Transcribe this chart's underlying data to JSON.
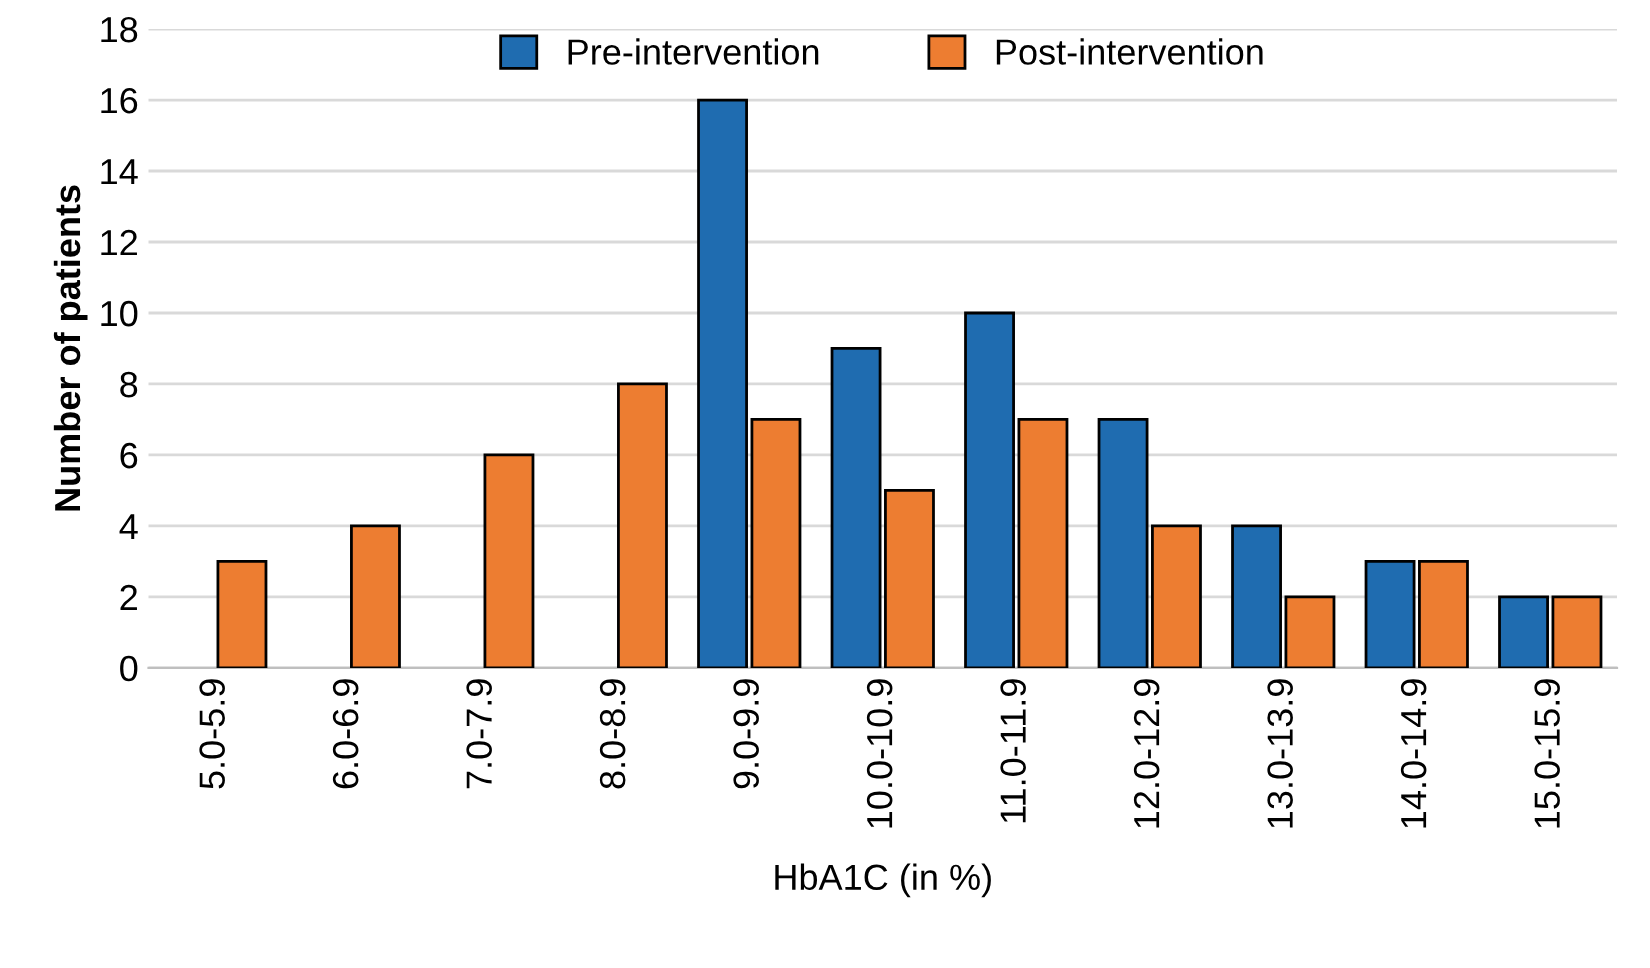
{
  "chart_data": {
    "type": "bar",
    "xlabel": "HbA1C (in %)",
    "ylabel": "Number of patients",
    "categories": [
      "5.0-5.9",
      "6.0-6.9",
      "7.0-7.9",
      "8.0-8.9",
      "9.0-9.9",
      "10.0-10.9",
      "11.0-11.9",
      "12.0-12.9",
      "13.0-13.9",
      "14.0-14.9",
      "15.0-15.9"
    ],
    "series": [
      {
        "name": "Pre-intervention",
        "color": "#1f6cb0",
        "values": [
          null,
          null,
          null,
          null,
          16,
          9,
          10,
          7,
          4,
          3,
          2
        ]
      },
      {
        "name": "Post-intervention",
        "color": "#ed7d31",
        "values": [
          3,
          4,
          6,
          8,
          7,
          5,
          7,
          4,
          2,
          3,
          2
        ]
      }
    ],
    "ylim": [
      0,
      18
    ],
    "yticks": [
      0,
      2,
      4,
      6,
      8,
      10,
      12,
      14,
      16,
      18
    ],
    "grid": "y",
    "legend": "top"
  }
}
